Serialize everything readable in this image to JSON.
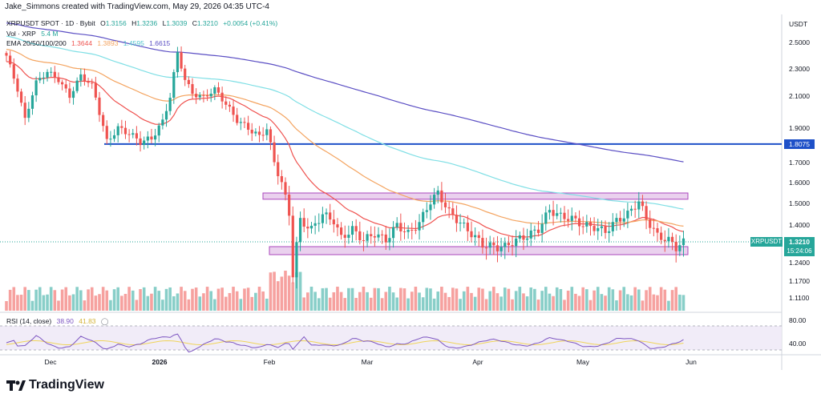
{
  "header": {
    "author": "Jake_Simmons created with TradingView.com, May 29, 2026 04:35 UTC-4",
    "symbol": "XRPUSDT SPOT · 1D · Bybit",
    "ohlc": {
      "o_label": "O",
      "o": "1.3156",
      "h_label": "H",
      "h": "1.3236",
      "l_label": "L",
      "l": "1.3039",
      "c_label": "C",
      "c": "1.3210",
      "change": "+0.0054 (+0.41%)"
    },
    "vol_label": "Vol · XRP",
    "vol_value": "5.4 M",
    "ema_label": "EMA 20/50/100/200",
    "ema_values": [
      "1.3644",
      "1.3893",
      "1.4595",
      "1.6615"
    ],
    "rsi_label": "RSI (14, close)",
    "rsi_values": [
      "38.90",
      "41.83"
    ],
    "currency": "USDT",
    "brand": "TradingView"
  },
  "colors": {
    "up": "#26a69a",
    "down": "#ef5350",
    "ema20": "#ef5350",
    "ema50": "#f4a460",
    "ema100": "#7fdfe5",
    "ema200": "#5b4fc4",
    "support_line": "#1e50c8",
    "zone_fill": "#e1bee7",
    "zone_border": "#ab47bc",
    "rsi": "#7e57c2",
    "rsi_ma": "#f0d45a",
    "rsi_band": "#ede7f6",
    "price_tag": "#26a69a",
    "level_tag": "#1e50c8"
  },
  "chart_data": {
    "type": "candlestick",
    "price_axis": {
      "ticks": [
        "2.5000",
        "2.3000",
        "2.1000",
        "1.9000",
        "1.7000",
        "1.6000",
        "1.5000",
        "1.4000",
        "1.3000",
        "1.2400",
        "1.1700",
        "1.1100"
      ]
    },
    "time_axis": {
      "ticks": [
        "Dec",
        "2026",
        "Feb",
        "Mar",
        "Apr",
        "May",
        "Jun"
      ]
    },
    "last_price": {
      "label": "XRPUSDT",
      "value": "1.3210",
      "countdown": "15:24:06"
    },
    "levels": [
      {
        "value": "1.8075",
        "type": "horizontal"
      }
    ],
    "zones": [
      {
        "name": "resistance",
        "low": 1.52,
        "high": 1.55
      },
      {
        "name": "support",
        "low": 1.27,
        "high": 1.3
      }
    ],
    "ema_last": {
      "ema20": 1.3644,
      "ema50": 1.3893,
      "ema100": 1.4595,
      "ema200": 1.6615
    },
    "close_path": [
      [
        0,
        2.4
      ],
      [
        3,
        2.15
      ],
      [
        5,
        1.95
      ],
      [
        8,
        2.2
      ],
      [
        11,
        2.28
      ],
      [
        14,
        2.22
      ],
      [
        17,
        2.1
      ],
      [
        20,
        2.25
      ],
      [
        23,
        2.18
      ],
      [
        25,
        2.0
      ],
      [
        27,
        1.82
      ],
      [
        30,
        1.9
      ],
      [
        33,
        1.87
      ],
      [
        36,
        1.82
      ],
      [
        39,
        1.84
      ],
      [
        42,
        1.94
      ],
      [
        44,
        2.1
      ],
      [
        46,
        2.42
      ],
      [
        48,
        2.22
      ],
      [
        50,
        2.12
      ],
      [
        53,
        2.09
      ],
      [
        56,
        2.15
      ],
      [
        59,
        2.05
      ],
      [
        62,
        1.95
      ],
      [
        65,
        1.9
      ],
      [
        68,
        1.85
      ],
      [
        70,
        1.9
      ],
      [
        72,
        1.7
      ],
      [
        74,
        1.6
      ],
      [
        76,
        1.45
      ],
      [
        77,
        1.2
      ],
      [
        79,
        1.42
      ],
      [
        82,
        1.38
      ],
      [
        85,
        1.45
      ],
      [
        88,
        1.42
      ],
      [
        90,
        1.34
      ],
      [
        93,
        1.38
      ],
      [
        96,
        1.33
      ],
      [
        99,
        1.36
      ],
      [
        102,
        1.33
      ],
      [
        105,
        1.4
      ],
      [
        108,
        1.36
      ],
      [
        111,
        1.41
      ],
      [
        114,
        1.51
      ],
      [
        116,
        1.55
      ],
      [
        119,
        1.46
      ],
      [
        122,
        1.41
      ],
      [
        125,
        1.36
      ],
      [
        128,
        1.31
      ],
      [
        131,
        1.3
      ],
      [
        134,
        1.3
      ],
      [
        137,
        1.33
      ],
      [
        140,
        1.35
      ],
      [
        143,
        1.38
      ],
      [
        146,
        1.47
      ],
      [
        149,
        1.44
      ],
      [
        152,
        1.43
      ],
      [
        155,
        1.4
      ],
      [
        158,
        1.39
      ],
      [
        161,
        1.37
      ],
      [
        164,
        1.42
      ],
      [
        167,
        1.45
      ],
      [
        170,
        1.51
      ],
      [
        172,
        1.43
      ],
      [
        175,
        1.35
      ],
      [
        178,
        1.33
      ],
      [
        180,
        1.3
      ],
      [
        182,
        1.32
      ]
    ],
    "rsi": {
      "ticks": [
        "80.00",
        "40.00"
      ],
      "last": 38.9,
      "ma_last": 41.83
    }
  }
}
